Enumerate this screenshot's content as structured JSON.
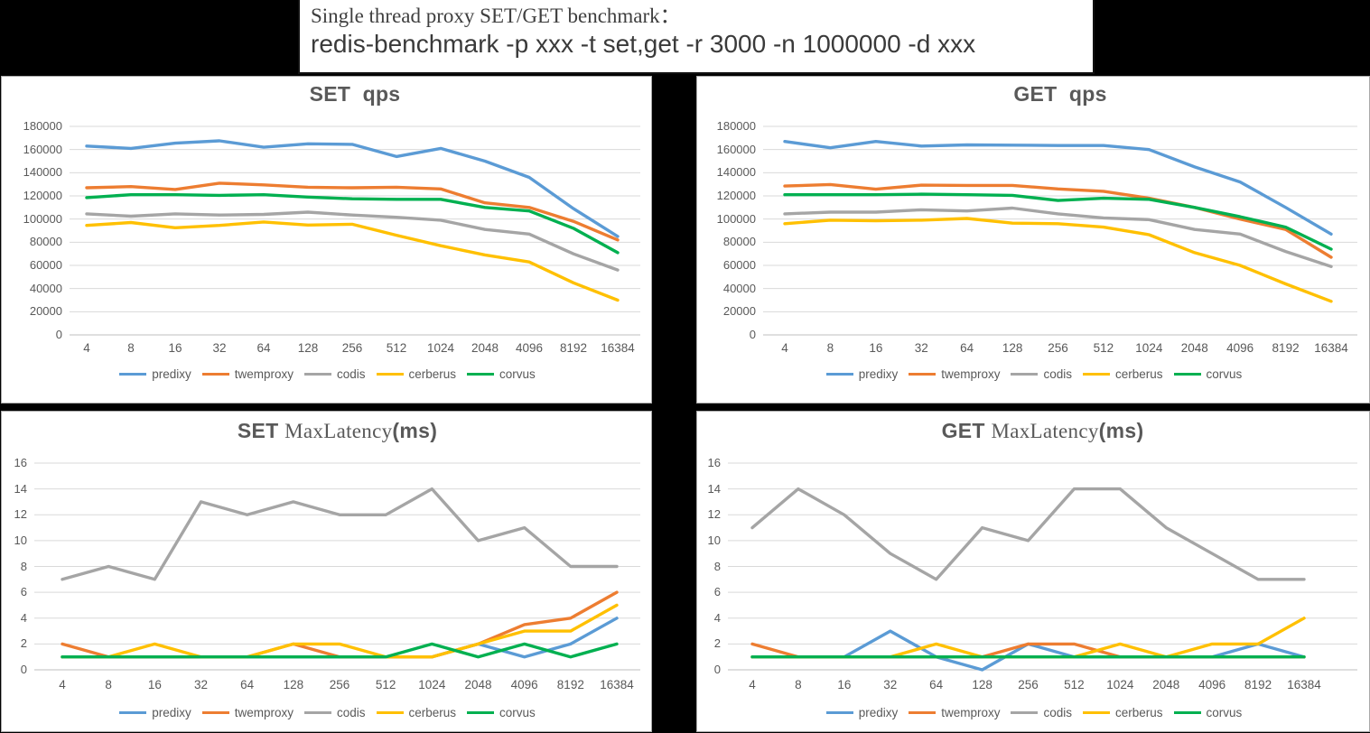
{
  "title_box": {
    "line1": "Single thread proxy SET/GET benchmark：",
    "line2": "redis-benchmark -p xxx -t set,get -r 3000 -n 1000000 -d xxx"
  },
  "colors": {
    "predixy": "#5B9BD5",
    "twemproxy": "#ED7D31",
    "codis": "#A5A5A5",
    "cerberus": "#FFC000",
    "corvus": "#00B050",
    "grid": "#D9D9D9",
    "axis": "#BFBFBF",
    "text": "#595959"
  },
  "legend": [
    "predixy",
    "twemproxy",
    "codis",
    "cerberus",
    "corvus"
  ],
  "chart_data": [
    {
      "id": "set-qps",
      "type": "line",
      "title_parts": [
        {
          "text": "SET  qps",
          "font": "bold"
        }
      ],
      "xlabel": "",
      "ylabel": "",
      "ylim": [
        0,
        180000
      ],
      "ytick_step": 20000,
      "grid": true,
      "legend_position": "bottom",
      "categories": [
        "4",
        "8",
        "16",
        "32",
        "64",
        "128",
        "256",
        "512",
        "1024",
        "2048",
        "4096",
        "8192",
        "16384"
      ],
      "series": [
        {
          "name": "predixy",
          "values": [
            163000,
            161000,
            165500,
            167500,
            162000,
            165000,
            164500,
            154000,
            161000,
            150000,
            136000,
            109000,
            85000
          ]
        },
        {
          "name": "twemproxy",
          "values": [
            127000,
            128000,
            125500,
            131000,
            129500,
            127500,
            127000,
            127500,
            126000,
            114000,
            110000,
            98000,
            82000
          ]
        },
        {
          "name": "codis",
          "values": [
            104500,
            102500,
            104500,
            103500,
            104000,
            106000,
            103500,
            101500,
            99000,
            91000,
            87000,
            70000,
            56000
          ]
        },
        {
          "name": "cerberus",
          "values": [
            94500,
            97000,
            92500,
            94500,
            97500,
            94800,
            95500,
            86000,
            77000,
            69000,
            63000,
            45000,
            30000
          ]
        },
        {
          "name": "corvus",
          "values": [
            118500,
            121000,
            121000,
            120500,
            121000,
            119000,
            117500,
            117000,
            117000,
            110000,
            107000,
            92000,
            71000
          ]
        }
      ]
    },
    {
      "id": "get-qps",
      "type": "line",
      "title_parts": [
        {
          "text": "GET  qps",
          "font": "bold"
        }
      ],
      "xlabel": "",
      "ylabel": "",
      "ylim": [
        0,
        180000
      ],
      "ytick_step": 20000,
      "grid": true,
      "legend_position": "bottom",
      "categories": [
        "4",
        "8",
        "16",
        "32",
        "64",
        "128",
        "256",
        "512",
        "1024",
        "2048",
        "4096",
        "8192",
        "16384"
      ],
      "series": [
        {
          "name": "predixy",
          "values": [
            167000,
            161500,
            167000,
            163000,
            164000,
            163800,
            163500,
            163500,
            160000,
            145000,
            132000,
            110000,
            87000
          ]
        },
        {
          "name": "twemproxy",
          "values": [
            128500,
            129800,
            125800,
            129300,
            129000,
            129000,
            126000,
            124000,
            118000,
            110000,
            100000,
            91000,
            67000
          ]
        },
        {
          "name": "codis",
          "values": [
            104500,
            106000,
            106000,
            108000,
            107000,
            109500,
            104500,
            101000,
            99500,
            91000,
            87000,
            72000,
            59000
          ]
        },
        {
          "name": "cerberus",
          "values": [
            96000,
            99000,
            98500,
            99000,
            100500,
            96500,
            96000,
            93000,
            86500,
            71000,
            60000,
            44000,
            29000
          ]
        },
        {
          "name": "corvus",
          "values": [
            121000,
            121000,
            121000,
            121500,
            121000,
            120500,
            116000,
            118000,
            117000,
            110000,
            102000,
            93000,
            74000
          ]
        }
      ]
    },
    {
      "id": "set-maxlatency",
      "type": "line",
      "title_parts": [
        {
          "text": "SET ",
          "font": "bold"
        },
        {
          "text": "MaxLatency",
          "font": "serif"
        },
        {
          "text": "(ms)",
          "font": "bold"
        }
      ],
      "xlabel": "",
      "ylabel": "",
      "ylim": [
        0,
        16
      ],
      "ytick_step": 2,
      "grid": true,
      "legend_position": "bottom",
      "categories": [
        "4",
        "8",
        "16",
        "32",
        "64",
        "128",
        "256",
        "512",
        "1024",
        "2048",
        "4096",
        "8192",
        "16384"
      ],
      "series": [
        {
          "name": "predixy",
          "values": [
            1,
            1,
            1,
            1,
            1,
            1,
            1,
            1,
            1,
            2,
            1,
            2,
            4
          ]
        },
        {
          "name": "twemproxy",
          "values": [
            2,
            1,
            1,
            1,
            1,
            2,
            1,
            1,
            1,
            2,
            3.5,
            4,
            6
          ]
        },
        {
          "name": "codis",
          "values": [
            7,
            8,
            7,
            13,
            12,
            13,
            12,
            12,
            14,
            10,
            11,
            8,
            8
          ]
        },
        {
          "name": "cerberus",
          "values": [
            1,
            1,
            2,
            1,
            1,
            2,
            2,
            1,
            1,
            2,
            3,
            3,
            5
          ]
        },
        {
          "name": "corvus",
          "values": [
            1,
            1,
            1,
            1,
            1,
            1,
            1,
            1,
            2,
            1,
            2,
            1,
            2
          ]
        }
      ]
    },
    {
      "id": "get-maxlatency",
      "type": "line",
      "title_parts": [
        {
          "text": "GET ",
          "font": "bold"
        },
        {
          "text": "MaxLatency",
          "font": "serif"
        },
        {
          "text": "(ms)",
          "font": "bold"
        }
      ],
      "xlabel": "",
      "ylabel": "",
      "ylim": [
        0,
        16
      ],
      "ytick_step": 2,
      "grid": true,
      "legend_position": "bottom",
      "categories": [
        "4",
        "8",
        "16",
        "32",
        "64",
        "128",
        "256",
        "512",
        "1024",
        "2048",
        "4096",
        "8192",
        "16384"
      ],
      "series": [
        {
          "name": "predixy",
          "values": [
            1,
            1,
            1,
            3,
            1,
            0,
            2,
            1,
            1,
            1,
            1,
            2,
            1
          ]
        },
        {
          "name": "twemproxy",
          "values": [
            2,
            1,
            1,
            1,
            1,
            1,
            2,
            2,
            1,
            1,
            1,
            1,
            1
          ]
        },
        {
          "name": "codis",
          "values": [
            11,
            14,
            12,
            9,
            7,
            11,
            10,
            14,
            14,
            11,
            9,
            7,
            7
          ]
        },
        {
          "name": "cerberus",
          "values": [
            1,
            1,
            1,
            1,
            2,
            1,
            1,
            1,
            2,
            1,
            2,
            2,
            4
          ]
        },
        {
          "name": "corvus",
          "values": [
            1,
            1,
            1,
            1,
            1,
            1,
            1,
            1,
            1,
            1,
            1,
            1,
            1
          ]
        }
      ]
    }
  ]
}
